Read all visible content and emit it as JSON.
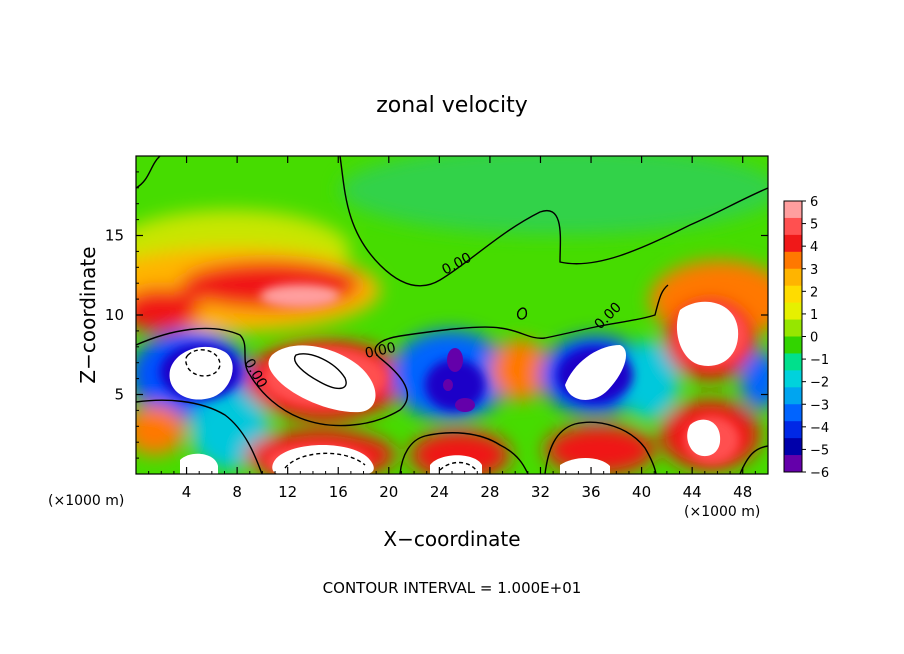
{
  "chart_data": {
    "type": "heatmap",
    "title": "zonal velocity",
    "xlabel": "X−coordinate",
    "ylabel": "Z−coordinate",
    "xlim": [
      0,
      50
    ],
    "ylim": [
      0,
      20
    ],
    "x_ticks": [
      4,
      8,
      12,
      16,
      20,
      24,
      28,
      32,
      36,
      40,
      44,
      48
    ],
    "y_ticks": [
      5,
      10,
      15
    ],
    "x_unit_label": "(×1000 m)",
    "y_unit_label": "(×1000 m)",
    "footer": "CONTOUR INTERVAL = 1.000E+01",
    "colorbar": {
      "ticks": [
        "6",
        "5",
        "4",
        "3",
        "2",
        "1",
        "0",
        "−1",
        "−2",
        "−3",
        "−4",
        "−5",
        "−6"
      ],
      "colors": [
        "#ff9e9e",
        "#ff5050",
        "#f01818",
        "#ff7800",
        "#ffb400",
        "#ffdc00",
        "#e6f000",
        "#96e600",
        "#32d400",
        "#00e08c",
        "#00d2dc",
        "#00a5f0",
        "#0064ff",
        "#0028e6",
        "#0000aa",
        "#6400aa"
      ]
    },
    "contour_labels": [
      "0.00",
      "0.00",
      "0.00",
      "0.00",
      "0.00"
    ],
    "features": [
      {
        "kind": "positive-max",
        "x": 14,
        "z": 7.0,
        "value": 6
      },
      {
        "kind": "positive-max",
        "x": 12,
        "z": 11.8,
        "value": 5
      },
      {
        "kind": "positive-max",
        "x": 46,
        "z": 9.0,
        "value": 6
      },
      {
        "kind": "positive-max",
        "x": 46,
        "z": 2.0,
        "value": 6
      },
      {
        "kind": "negative-min",
        "x": 5,
        "z": 6.5,
        "value": -6
      },
      {
        "kind": "negative-min",
        "x": 25,
        "z": 6.0,
        "value": -6
      },
      {
        "kind": "negative-min",
        "x": 36,
        "z": 6.5,
        "value": -6
      }
    ]
  }
}
